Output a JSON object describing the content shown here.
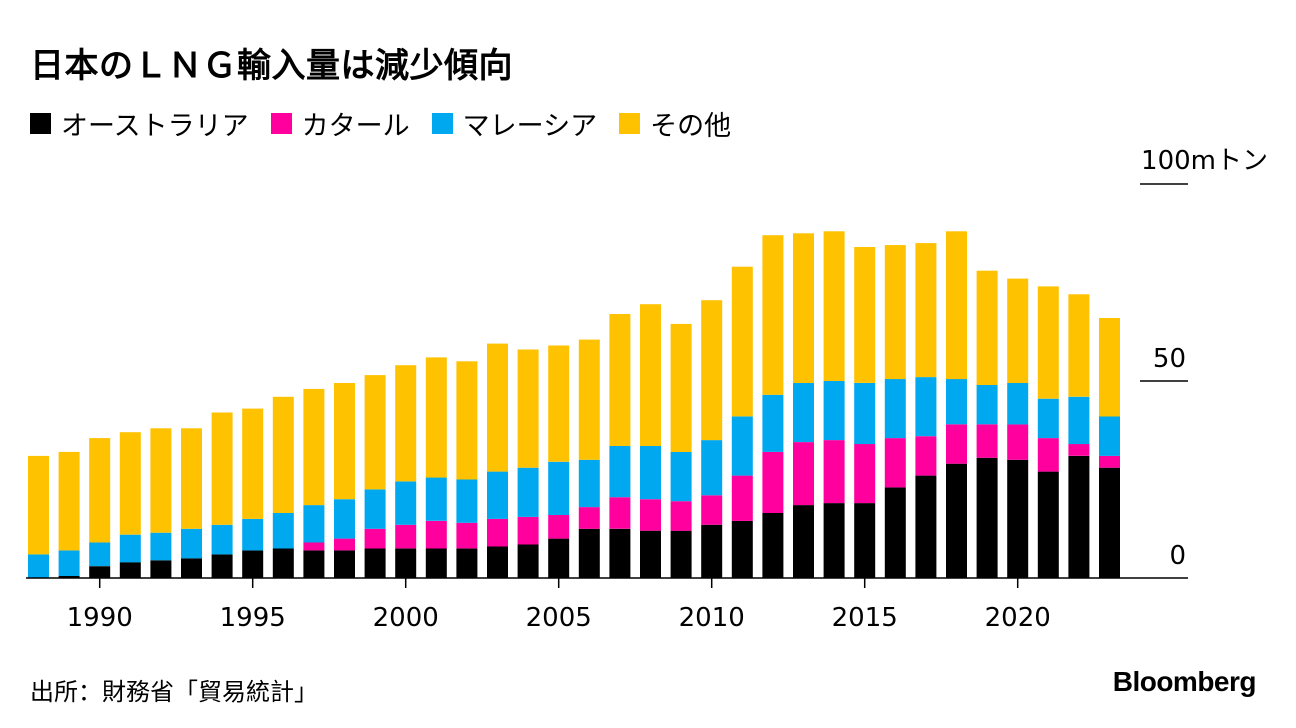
{
  "title": "日本のＬＮＧ輸入量は減少傾向",
  "source": "出所：財務省「貿易統計」",
  "brand": "Bloomberg",
  "chart_data": {
    "type": "bar",
    "stacked": true,
    "unit_label": "100mトン",
    "ylim": [
      0,
      100
    ],
    "y_ticks": [
      "0",
      "50"
    ],
    "x_tick_labels": [
      "1990",
      "1995",
      "2000",
      "2005",
      "2010",
      "2015",
      "2020"
    ],
    "grid": false,
    "legend_position": "top-left",
    "categories": [
      "1988",
      "1989",
      "1990",
      "1991",
      "1992",
      "1993",
      "1994",
      "1995",
      "1996",
      "1997",
      "1998",
      "1999",
      "2000",
      "2001",
      "2002",
      "2003",
      "2004",
      "2005",
      "2006",
      "2007",
      "2008",
      "2009",
      "2010",
      "2011",
      "2012",
      "2013",
      "2014",
      "2015",
      "2016",
      "2017",
      "2018",
      "2019",
      "2020",
      "2021",
      "2022",
      "2023"
    ],
    "series": [
      {
        "name": "オーストラリア",
        "color": "#000000",
        "values": [
          0,
          0.5,
          3,
          4,
          4.5,
          5,
          6,
          7,
          7.5,
          7,
          7,
          7.5,
          7.5,
          7.5,
          7.5,
          8,
          8.5,
          10,
          12.5,
          12.5,
          12,
          12,
          13.5,
          14.5,
          16.5,
          18.5,
          19,
          19,
          23,
          26,
          29,
          30.5,
          30,
          27,
          31,
          28
        ]
      },
      {
        "name": "カタール",
        "color": "#ff009e",
        "values": [
          0,
          0,
          0,
          0,
          0,
          0,
          0,
          0,
          0,
          2,
          3,
          5,
          6,
          7,
          6.5,
          7,
          7,
          6,
          5.5,
          8,
          8,
          7.5,
          7.5,
          11.5,
          15.5,
          16,
          16,
          15,
          12.5,
          10,
          10,
          8.5,
          9,
          8.5,
          3,
          3
        ]
      },
      {
        "name": "マレーシア",
        "color": "#00a8f0",
        "values": [
          6,
          6.5,
          6,
          7,
          7,
          7.5,
          7.5,
          8,
          9,
          9.5,
          10,
          10,
          11,
          11,
          11,
          12,
          12.5,
          13.5,
          12,
          13,
          13.5,
          12.5,
          14,
          15,
          14.5,
          15,
          15,
          15.5,
          15,
          15,
          11.5,
          10,
          10.5,
          10,
          12,
          10
        ]
      },
      {
        "name": "その他",
        "color": "#ffc200",
        "values": [
          25,
          25,
          26.5,
          26,
          26.5,
          25.5,
          28.5,
          28,
          29.5,
          29.5,
          29.5,
          29,
          29.5,
          30.5,
          30,
          32.5,
          30,
          29.5,
          30.5,
          33.5,
          36,
          32.5,
          35.5,
          38,
          40.5,
          38,
          38,
          34.5,
          34,
          34,
          37.5,
          29,
          26.5,
          28.5,
          26,
          25
        ]
      }
    ]
  }
}
